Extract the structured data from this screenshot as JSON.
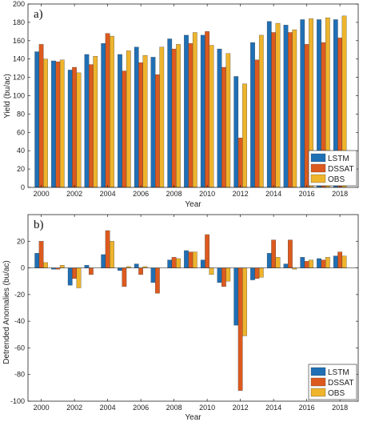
{
  "colors": {
    "LSTM": "#1f6fb5",
    "DSSAT": "#dd5a1e",
    "OBS": "#eeb42c"
  },
  "chart_data": [
    {
      "type": "bar",
      "panel_label": "a)",
      "xlabel": "Year",
      "ylabel": "Yield (bu/ac)",
      "ylim": [
        0,
        200
      ],
      "yticks": [
        0,
        20,
        40,
        60,
        80,
        100,
        120,
        140,
        160,
        180,
        200
      ],
      "xticks": [
        "2000",
        "2002",
        "2004",
        "2006",
        "2008",
        "2010",
        "2012",
        "2014",
        "2016",
        "2018"
      ],
      "categories": [
        "2000",
        "2001",
        "2002",
        "2003",
        "2004",
        "2005",
        "2006",
        "2007",
        "2008",
        "2009",
        "2010",
        "2011",
        "2012",
        "2013",
        "2014",
        "2015",
        "2016",
        "2017",
        "2018"
      ],
      "grid": false,
      "legend_position": "bottom-right",
      "series": [
        {
          "name": "LSTM",
          "values": [
            148,
            138,
            128,
            145,
            157,
            145,
            153,
            142,
            162,
            166,
            166,
            151,
            121,
            158,
            181,
            177,
            183,
            183,
            183
          ]
        },
        {
          "name": "DSSAT",
          "values": [
            156,
            137,
            131,
            134,
            168,
            127,
            136,
            123,
            151,
            157,
            170,
            131,
            54,
            139,
            169,
            169,
            156,
            158,
            163
          ]
        },
        {
          "name": "OBS",
          "values": [
            140,
            139,
            125,
            143,
            165,
            149,
            144,
            153,
            156,
            169,
            155,
            146,
            113,
            166,
            179,
            172,
            184,
            185,
            187
          ]
        }
      ]
    },
    {
      "type": "bar",
      "panel_label": "b)",
      "xlabel": "Year",
      "ylabel": "Detrended Anomalies (bu/ac)",
      "ylim": [
        -100,
        40
      ],
      "yticks": [
        -100,
        -80,
        -60,
        -40,
        -20,
        0,
        20
      ],
      "xticks": [
        "2000",
        "2002",
        "2004",
        "2006",
        "2008",
        "2010",
        "2012",
        "2014",
        "2016",
        "2018"
      ],
      "categories": [
        "2000",
        "2001",
        "2002",
        "2003",
        "2004",
        "2005",
        "2006",
        "2007",
        "2008",
        "2009",
        "2010",
        "2011",
        "2012",
        "2013",
        "2014",
        "2015",
        "2016",
        "2017",
        "2018"
      ],
      "grid": false,
      "legend_position": "bottom-right",
      "series": [
        {
          "name": "LSTM",
          "values": [
            11,
            -1,
            -13,
            2,
            10,
            -2,
            3,
            -11,
            6,
            13,
            6,
            -11,
            -43,
            -9,
            11,
            3,
            8,
            7,
            9
          ]
        },
        {
          "name": "DSSAT",
          "values": [
            20,
            -1,
            -8,
            -5,
            28,
            -14,
            -5,
            -19,
            8,
            12,
            25,
            -14,
            -92,
            -8,
            21,
            21,
            5,
            6,
            12
          ]
        },
        {
          "name": "OBS",
          "values": [
            4,
            2,
            -15,
            0,
            20,
            1,
            1,
            0,
            7,
            12,
            -5,
            -10,
            -51,
            -7,
            8,
            -1,
            6,
            8,
            9
          ]
        }
      ]
    }
  ]
}
